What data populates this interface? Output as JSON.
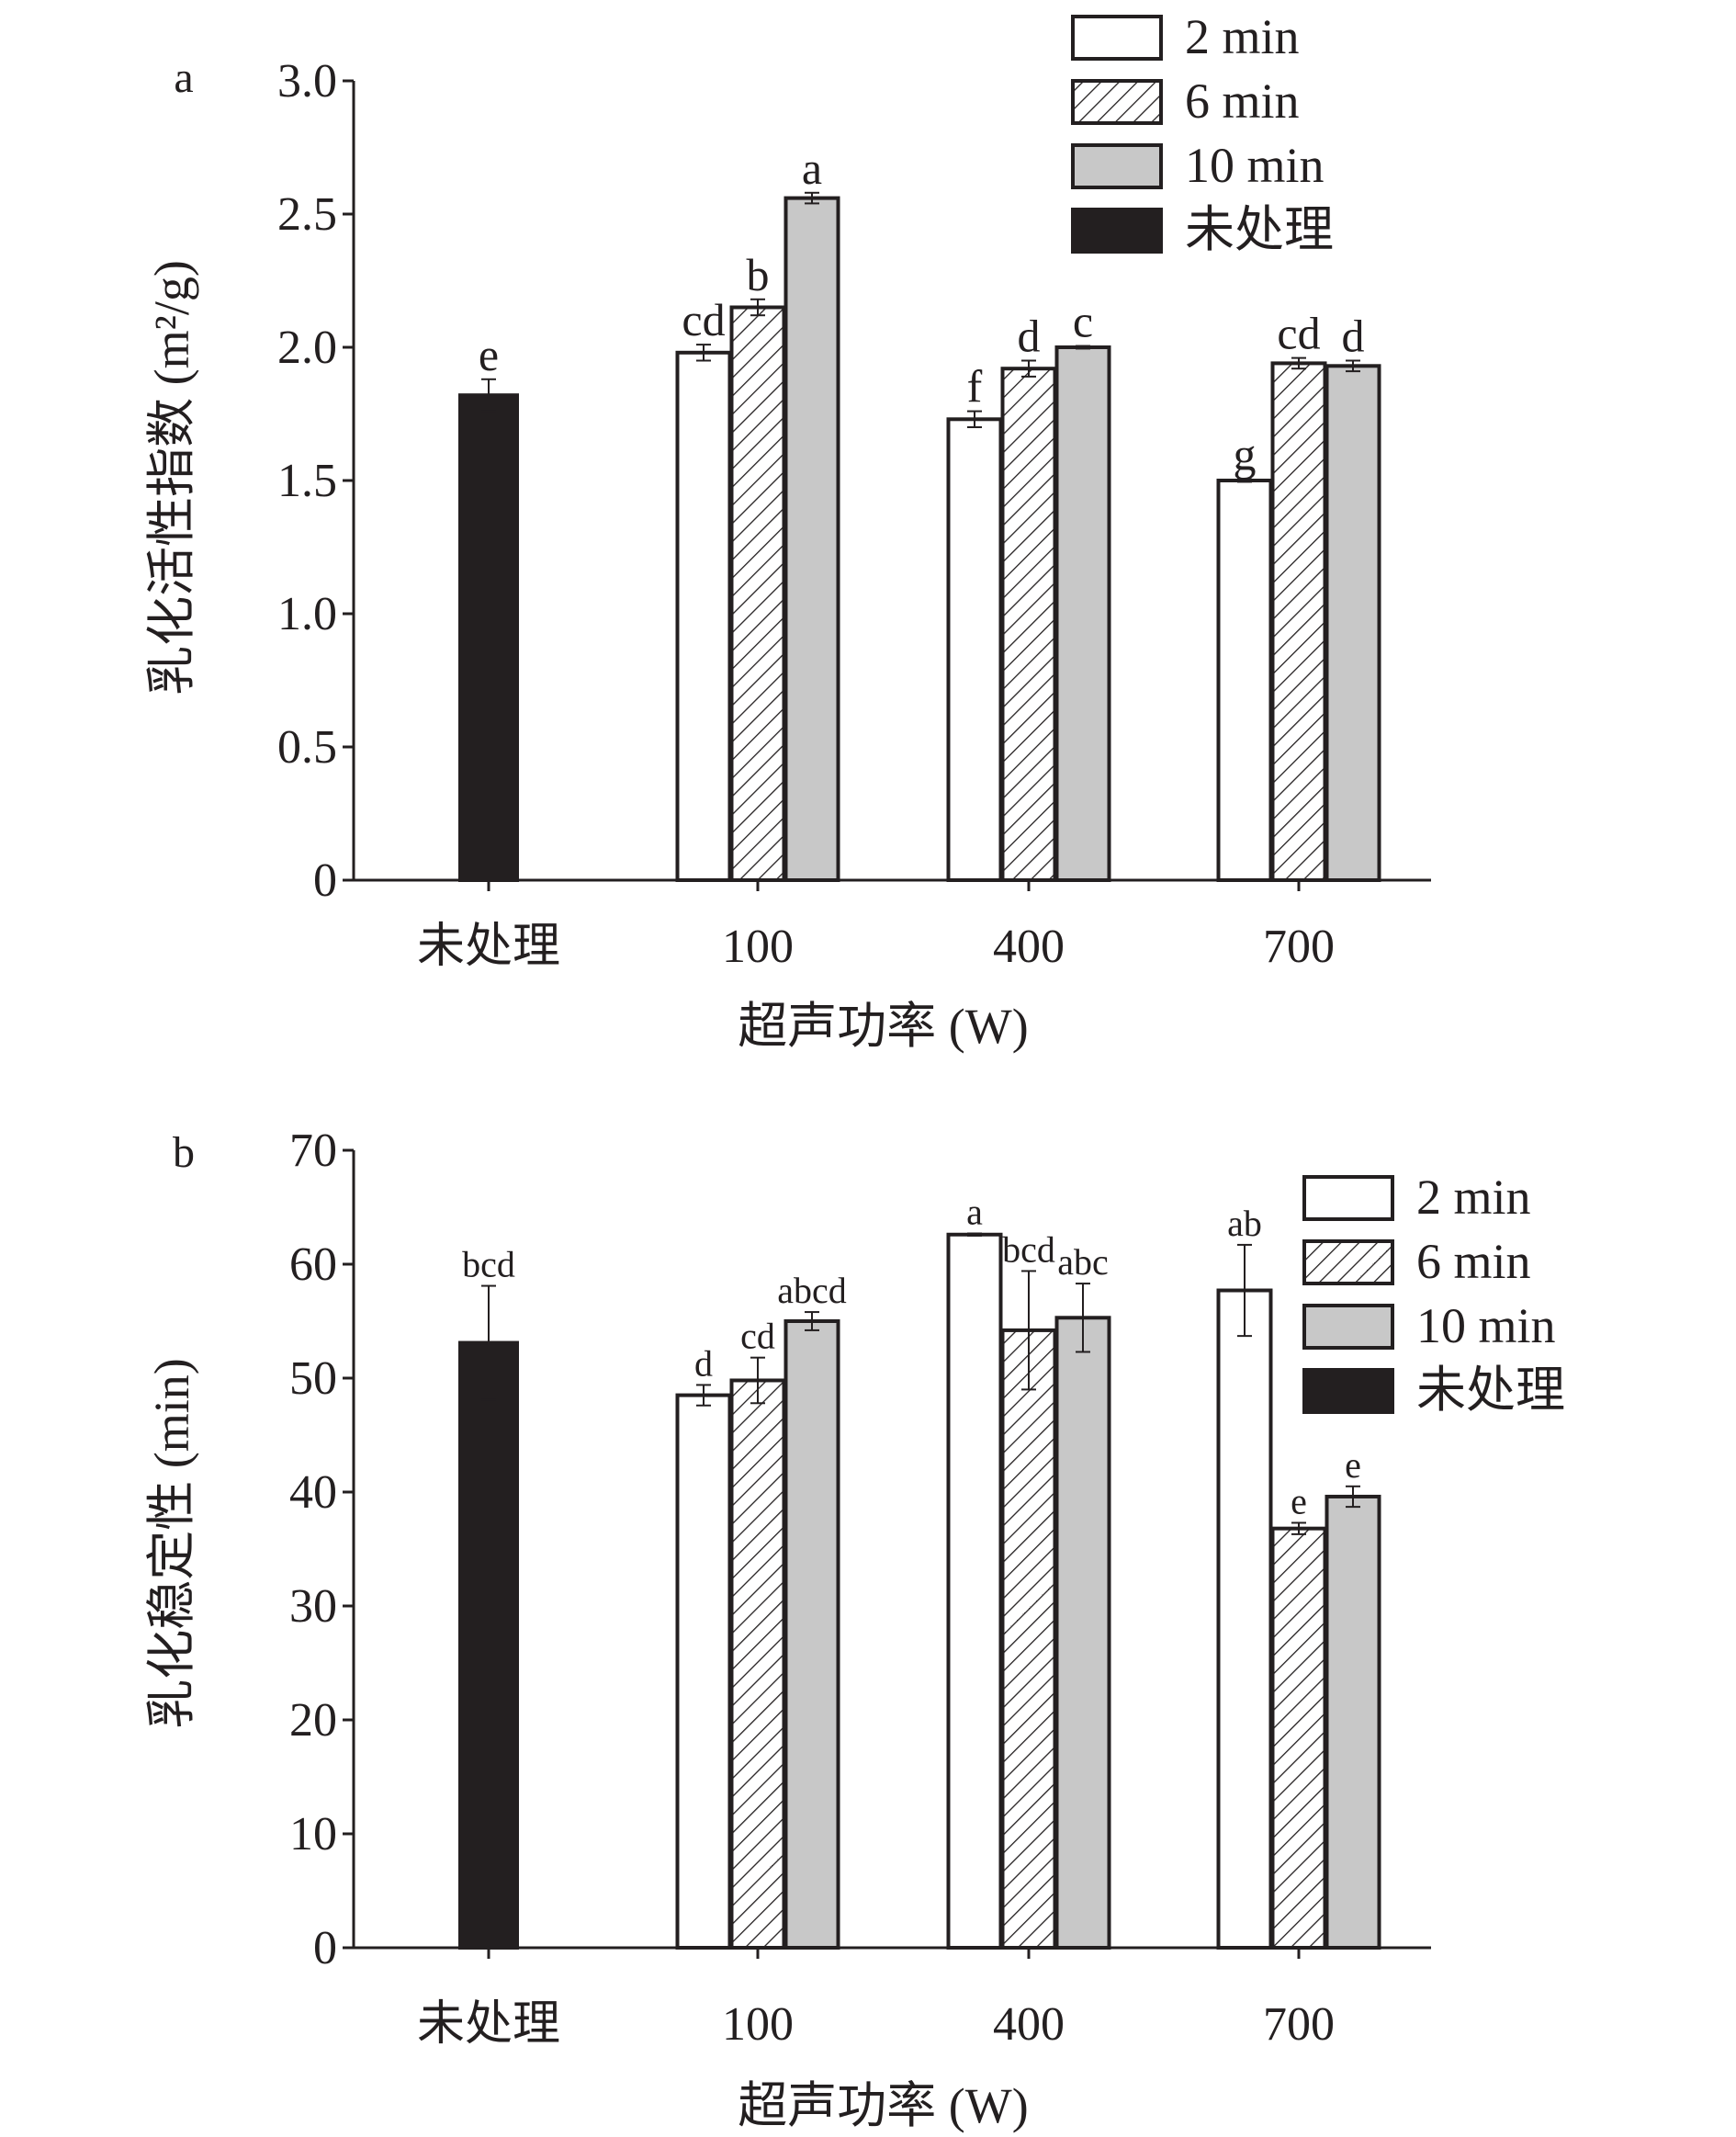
{
  "chart_data": [
    {
      "panel": "a",
      "type": "bar",
      "xlabel": "超声功率 (W)",
      "ylabel": "乳化活性指数 (m²/g)",
      "ylim": [
        0,
        3.0
      ],
      "yticks": [
        {
          "value": 0,
          "label": "0"
        },
        {
          "value": 0.5,
          "label": "0.5"
        },
        {
          "value": 1.0,
          "label": "1.0"
        },
        {
          "value": 1.5,
          "label": "1.5"
        },
        {
          "value": 2.0,
          "label": "2.0"
        },
        {
          "value": 2.5,
          "label": "2.5"
        },
        {
          "value": 3.0,
          "label": "3.0"
        }
      ],
      "categories": [
        "未处理",
        "100",
        "400",
        "700"
      ],
      "legend_position": "top-right",
      "series": [
        {
          "name": "2 min",
          "style": "white",
          "values": [
            null,
            1.98,
            1.73,
            1.5
          ],
          "errors": [
            null,
            0.03,
            0.03,
            0.005
          ],
          "labels": [
            null,
            "cd",
            "f",
            "g"
          ]
        },
        {
          "name": "6 min",
          "style": "hatch",
          "values": [
            null,
            2.15,
            1.92,
            1.94
          ],
          "errors": [
            null,
            0.03,
            0.03,
            0.02
          ],
          "labels": [
            null,
            "b",
            "d",
            "cd"
          ]
        },
        {
          "name": "10 min",
          "style": "gray",
          "values": [
            null,
            2.56,
            2.0,
            1.93
          ],
          "errors": [
            null,
            0.02,
            0.005,
            0.02
          ],
          "labels": [
            null,
            "a",
            "c",
            "d"
          ]
        },
        {
          "name": "未处理",
          "style": "black",
          "values": [
            1.82,
            null,
            null,
            null
          ],
          "errors": [
            0.06,
            null,
            null,
            null
          ],
          "labels": [
            "e",
            null,
            null,
            null
          ]
        }
      ]
    },
    {
      "panel": "b",
      "type": "bar",
      "xlabel": "超声功率 (W)",
      "ylabel": "乳化稳定性 (min)",
      "ylim": [
        0,
        70
      ],
      "yticks": [
        {
          "value": 0,
          "label": "0"
        },
        {
          "value": 10,
          "label": "10"
        },
        {
          "value": 20,
          "label": "20"
        },
        {
          "value": 30,
          "label": "30"
        },
        {
          "value": 40,
          "label": "40"
        },
        {
          "value": 50,
          "label": "50"
        },
        {
          "value": 60,
          "label": "60"
        },
        {
          "value": 70,
          "label": "70"
        }
      ],
      "categories": [
        "未处理",
        "100",
        "400",
        "700"
      ],
      "legend_position": "top-right",
      "series": [
        {
          "name": "2 min",
          "style": "white",
          "values": [
            null,
            48.5,
            62.6,
            57.7
          ],
          "errors": [
            null,
            0.9,
            0.1,
            4.0
          ],
          "labels": [
            null,
            "d",
            "a",
            "ab"
          ]
        },
        {
          "name": "6 min",
          "style": "hatch",
          "values": [
            null,
            49.8,
            54.2,
            36.8
          ],
          "errors": [
            null,
            2.0,
            5.2,
            0.5
          ],
          "labels": [
            null,
            "cd",
            "bcd",
            "e"
          ]
        },
        {
          "name": "10 min",
          "style": "gray",
          "values": [
            null,
            55.0,
            55.3,
            39.6
          ],
          "errors": [
            null,
            0.8,
            3.0,
            0.9
          ],
          "labels": [
            null,
            "abcd",
            "abc",
            "e"
          ]
        },
        {
          "name": "未处理",
          "style": "black",
          "values": [
            53.1,
            null,
            null,
            null
          ],
          "errors": [
            5.0,
            null,
            null,
            null
          ],
          "labels": [
            "bcd",
            null,
            null,
            null
          ]
        }
      ]
    }
  ]
}
